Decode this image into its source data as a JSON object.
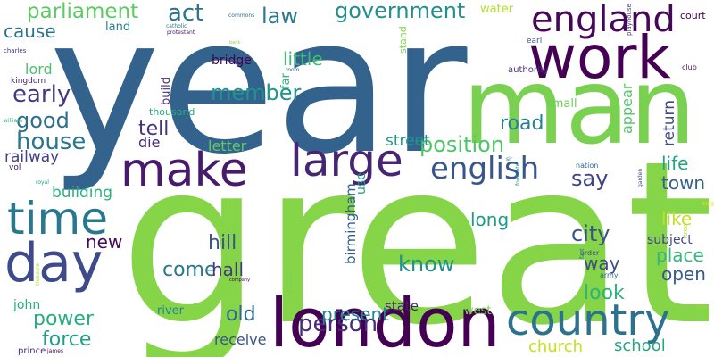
{
  "colors": {
    "background": "#ffffff"
  },
  "words": [
    {
      "text": "great",
      "color": "#86d549"
    },
    {
      "text": "year",
      "color": "#33638d"
    },
    {
      "text": "man",
      "color": "#7ad151"
    },
    {
      "text": "london",
      "color": "#440154"
    },
    {
      "text": "work",
      "color": "#440154"
    },
    {
      "text": "make",
      "color": "#481a6c"
    },
    {
      "text": "large",
      "color": "#482475"
    },
    {
      "text": "country",
      "color": "#2c728e"
    },
    {
      "text": "time",
      "color": "#2a788e"
    },
    {
      "text": "day",
      "color": "#3e4a89"
    },
    {
      "text": "england",
      "color": "#46075a"
    },
    {
      "text": "english",
      "color": "#39568c"
    },
    {
      "text": "government",
      "color": "#218f8d"
    },
    {
      "text": "parliament",
      "color": "#5ec962"
    },
    {
      "text": "act",
      "color": "#2b748e"
    },
    {
      "text": "law",
      "color": "#2a788e"
    },
    {
      "text": "house",
      "color": "#2a768e"
    },
    {
      "text": "good",
      "color": "#2e6e8e"
    },
    {
      "text": "early",
      "color": "#453882"
    },
    {
      "text": "member",
      "color": "#1f948c"
    },
    {
      "text": "little",
      "color": "#3dbc74"
    },
    {
      "text": "position",
      "color": "#50c46a"
    },
    {
      "text": "road",
      "color": "#27808e"
    },
    {
      "text": "tell",
      "color": "#46337f"
    },
    {
      "text": "say",
      "color": "#414487"
    },
    {
      "text": "person",
      "color": "#472c7a"
    },
    {
      "text": "present",
      "color": "#25848e"
    },
    {
      "text": "know",
      "color": "#21918c"
    },
    {
      "text": "city",
      "color": "#3b528b"
    },
    {
      "text": "new",
      "color": "#46085c"
    },
    {
      "text": "force",
      "color": "#1f9e89"
    },
    {
      "text": "power",
      "color": "#27ad81"
    },
    {
      "text": "old",
      "color": "#31688e"
    },
    {
      "text": "come",
      "color": "#2a788e"
    },
    {
      "text": "hall",
      "color": "#443a83"
    },
    {
      "text": "hill",
      "color": "#39568c"
    },
    {
      "text": "long",
      "color": "#1f9a8a"
    },
    {
      "text": "way",
      "color": "#3e4c8a"
    },
    {
      "text": "look",
      "color": "#2eb37c"
    },
    {
      "text": "life",
      "color": "#20a486"
    },
    {
      "text": "town",
      "color": "#34618d"
    },
    {
      "text": "like",
      "color": "#c2df23"
    },
    {
      "text": "place",
      "color": "#35b779"
    },
    {
      "text": "open",
      "color": "#38588c"
    },
    {
      "text": "subject",
      "color": "#3f4788"
    },
    {
      "text": "school",
      "color": "#22a785"
    },
    {
      "text": "church",
      "color": "#c5e021"
    },
    {
      "text": "railway",
      "color": "#424086"
    },
    {
      "text": "building",
      "color": "#2ab07f"
    },
    {
      "text": "street",
      "color": "#1f998a"
    },
    {
      "text": "letter",
      "color": "#65cb5e"
    },
    {
      "text": "die",
      "color": "#482878"
    },
    {
      "text": "cause",
      "color": "#2c718e"
    },
    {
      "text": "lord",
      "color": "#4ac16d"
    },
    {
      "text": "bridge",
      "color": "#440154"
    },
    {
      "text": "john",
      "color": "#27ad81"
    },
    {
      "text": "receive",
      "color": "#3a548c"
    },
    {
      "text": "state",
      "color": "#481d6f"
    },
    {
      "text": "river",
      "color": "#24868e"
    },
    {
      "text": "return",
      "color": "#3e4a89"
    },
    {
      "text": "appear",
      "color": "#54c568"
    },
    {
      "text": "birmingham",
      "color": "#365c8d"
    },
    {
      "text": "build",
      "color": "#472e7c"
    },
    {
      "text": "use",
      "color": "#1fa088"
    },
    {
      "text": "far",
      "color": "#2db27d"
    },
    {
      "text": "water",
      "color": "#b2dd2d"
    },
    {
      "text": "land",
      "color": "#26828e"
    },
    {
      "text": "court",
      "color": "#440154"
    },
    {
      "text": "small",
      "color": "#6ece58"
    },
    {
      "text": "thousand",
      "color": "#25ac82"
    },
    {
      "text": "west",
      "color": "#7ad151"
    },
    {
      "text": "pass",
      "color": "#7ad151"
    },
    {
      "text": "stand",
      "color": "#7fd34e"
    },
    {
      "text": "authority",
      "color": "#46327e"
    },
    {
      "text": "prince",
      "color": "#472d7b"
    },
    {
      "text": "kingdom",
      "color": "#482173"
    },
    {
      "text": "vol",
      "color": "#481467"
    },
    {
      "text": "earl",
      "color": "#3b528b"
    },
    {
      "text": "order",
      "color": "#3e4c8a"
    },
    {
      "text": "army",
      "color": "#2e6e8e"
    },
    {
      "text": "nation",
      "color": "#31688e"
    },
    {
      "text": "club",
      "color": "#481467"
    },
    {
      "text": "charles",
      "color": "#46327e"
    },
    {
      "text": "commons",
      "color": "#31688e"
    },
    {
      "text": "catholic",
      "color": "#2a788e"
    },
    {
      "text": "protestant",
      "color": "#481467"
    },
    {
      "text": "william",
      "color": "#31b57b"
    },
    {
      "text": "royal",
      "color": "#22a785"
    },
    {
      "text": "james",
      "color": "#440154"
    },
    {
      "text": "playhouse",
      "color": "#453882"
    },
    {
      "text": "play",
      "color": "#a0da39"
    },
    {
      "text": "king",
      "color": "#dde318"
    },
    {
      "text": "tree",
      "color": "#b5de2b"
    },
    {
      "text": "footnote",
      "color": "#21918c"
    },
    {
      "text": "sir",
      "color": "#2a788e"
    },
    {
      "text": "garden",
      "color": "#39568c"
    },
    {
      "text": "room",
      "color": "#33638d"
    },
    {
      "text": "company",
      "color": "#440154"
    },
    {
      "text": "bank",
      "color": "#86d549"
    },
    {
      "text": "fact",
      "color": "#31688e"
    },
    {
      "text": "treasure",
      "color": "#b5de2b"
    }
  ]
}
